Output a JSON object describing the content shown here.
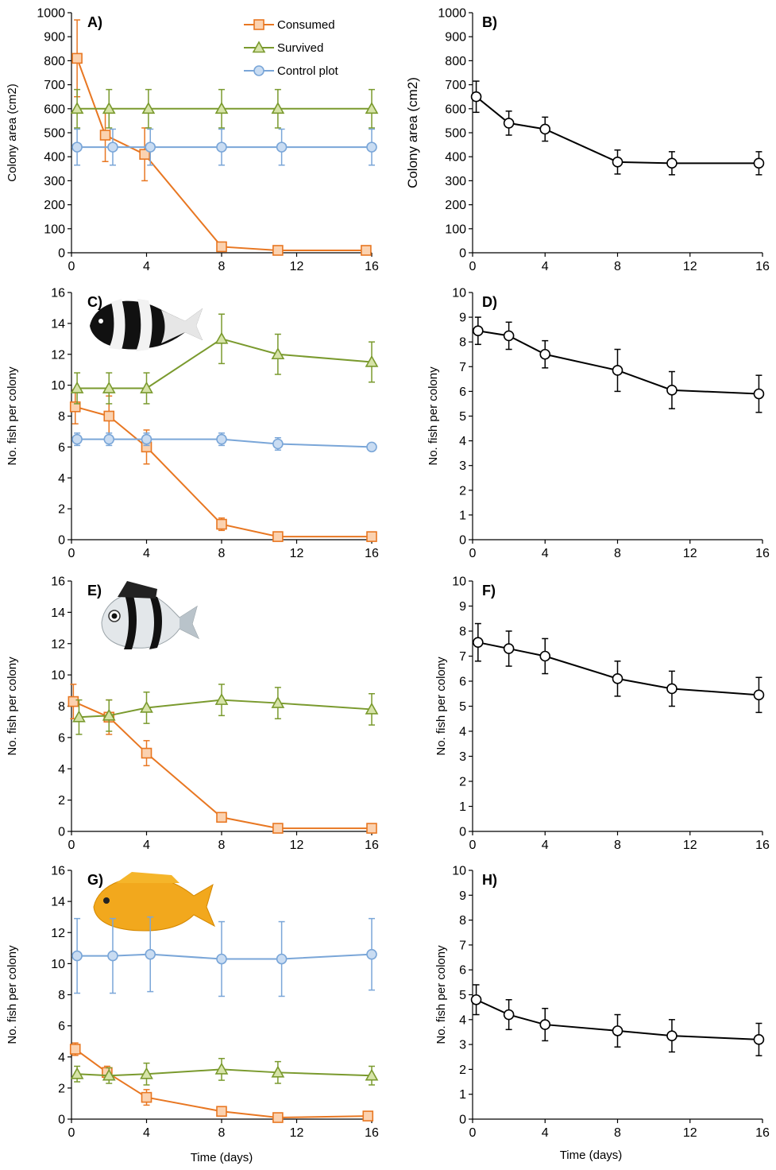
{
  "colors": {
    "consumed": "#e87722",
    "consumed_fill": "#fbd2b0",
    "survived": "#7a9a2e",
    "survived_fill": "#d6e3a8",
    "control": "#7aa6d8",
    "control_fill": "#c9dcf2",
    "mean": "#000000",
    "mean_fill": "#ffffff"
  },
  "legend": {
    "consumed": "Consumed",
    "survived": "Survived",
    "control": "Control plot"
  },
  "xlabel_left": "Time (days)",
  "xlabel_right": "Time (days)",
  "chart_data": [
    {
      "panel": "A)",
      "type": "line",
      "ylabel": "Colony area (cm2)",
      "ylim": [
        0,
        1000
      ],
      "yticks": [
        0,
        100,
        200,
        300,
        400,
        500,
        600,
        700,
        800,
        900,
        1000
      ],
      "xlim": [
        0,
        16
      ],
      "xticks": [
        0,
        4,
        8,
        12,
        16
      ],
      "legend": true,
      "series": [
        {
          "name": "Consumed",
          "style": "consumed",
          "marker": "square",
          "x": [
            0.3,
            1.8,
            3.9,
            8.0,
            11.0,
            15.7
          ],
          "y": [
            810,
            490,
            410,
            25,
            10,
            10
          ],
          "err": [
            160,
            110,
            110,
            0,
            0,
            0
          ]
        },
        {
          "name": "Survived",
          "style": "survived",
          "marker": "triangle",
          "x": [
            0.3,
            2.0,
            4.1,
            8.0,
            11.0,
            16.0
          ],
          "y": [
            600,
            600,
            600,
            600,
            600,
            600
          ],
          "err": [
            80,
            80,
            80,
            80,
            80,
            80
          ]
        },
        {
          "name": "Control plot",
          "style": "control",
          "marker": "circle",
          "x": [
            0.3,
            2.2,
            4.2,
            8.0,
            11.2,
            16.0
          ],
          "y": [
            440,
            440,
            440,
            440,
            440,
            440
          ],
          "err": [
            75,
            75,
            75,
            75,
            75,
            75
          ]
        }
      ]
    },
    {
      "panel": "B)",
      "type": "line",
      "ylabel": "Colony area (cm2)",
      "ylim": [
        0,
        1000
      ],
      "yticks": [
        0,
        100,
        200,
        300,
        400,
        500,
        600,
        700,
        800,
        900,
        1000
      ],
      "xlim": [
        0,
        16
      ],
      "xticks": [
        0,
        4,
        8,
        12,
        16
      ],
      "series": [
        {
          "style": "mean",
          "marker": "circle",
          "x": [
            0.2,
            2.0,
            4.0,
            8.0,
            11.0,
            15.8
          ],
          "y": [
            650,
            540,
            515,
            378,
            373,
            373
          ],
          "err": [
            65,
            50,
            50,
            50,
            48,
            48
          ]
        }
      ]
    },
    {
      "panel": "C)",
      "type": "line",
      "ylabel": "No. fish per colony",
      "ylim": [
        0,
        16
      ],
      "yticks": [
        0,
        2,
        4,
        6,
        8,
        10,
        12,
        14,
        16
      ],
      "xlim": [
        0,
        16
      ],
      "xticks": [
        0,
        4,
        8,
        12,
        16
      ],
      "fish": "black-white",
      "series": [
        {
          "name": "Consumed",
          "style": "consumed",
          "marker": "square",
          "x": [
            0.2,
            2.0,
            4.0,
            8.0,
            11.0,
            16.0
          ],
          "y": [
            8.6,
            8.0,
            6.0,
            1.0,
            0.2,
            0.2
          ],
          "err": [
            1.1,
            1.3,
            1.1,
            0.4,
            0,
            0
          ]
        },
        {
          "name": "Survived",
          "style": "survived",
          "marker": "triangle",
          "x": [
            0.3,
            2.0,
            4.0,
            8.0,
            11.0,
            16.0
          ],
          "y": [
            9.8,
            9.8,
            9.8,
            13.0,
            12.0,
            11.5
          ],
          "err": [
            1.0,
            1.0,
            1.0,
            1.6,
            1.3,
            1.3
          ]
        },
        {
          "name": "Control plot",
          "style": "control",
          "marker": "circle",
          "x": [
            0.3,
            2.0,
            4.0,
            8.0,
            11.0,
            16.0
          ],
          "y": [
            6.5,
            6.5,
            6.5,
            6.5,
            6.2,
            6.0
          ],
          "err": [
            0.4,
            0.4,
            0.4,
            0.4,
            0.4,
            0.2
          ]
        }
      ]
    },
    {
      "panel": "D)",
      "type": "line",
      "ylabel": "No. fish per colony",
      "ylim": [
        0,
        10
      ],
      "yticks": [
        0,
        1,
        2,
        3,
        4,
        5,
        6,
        7,
        8,
        9,
        10
      ],
      "xlim": [
        0,
        16
      ],
      "xticks": [
        0,
        4,
        8,
        12,
        16
      ],
      "series": [
        {
          "style": "mean",
          "marker": "circle",
          "x": [
            0.3,
            2.0,
            4.0,
            8.0,
            11.0,
            15.8
          ],
          "y": [
            8.45,
            8.25,
            7.5,
            6.85,
            6.05,
            5.9
          ],
          "err": [
            0.55,
            0.55,
            0.55,
            0.85,
            0.75,
            0.75
          ]
        }
      ]
    },
    {
      "panel": "E)",
      "type": "line",
      "ylabel": "No. fish per colony",
      "ylim": [
        0,
        16
      ],
      "yticks": [
        0,
        2,
        4,
        6,
        8,
        10,
        12,
        14,
        16
      ],
      "xlim": [
        0,
        16
      ],
      "xticks": [
        0,
        4,
        8,
        12,
        16
      ],
      "fish": "striped-white",
      "series": [
        {
          "name": "Consumed",
          "style": "consumed",
          "marker": "square",
          "x": [
            0.1,
            2.0,
            4.0,
            8.0,
            11.0,
            16.0
          ],
          "y": [
            8.3,
            7.3,
            5.0,
            0.9,
            0.2,
            0.2
          ],
          "err": [
            1.1,
            1.1,
            0.8,
            0,
            0,
            0
          ]
        },
        {
          "name": "Survived",
          "style": "survived",
          "marker": "triangle",
          "x": [
            0.4,
            2.0,
            4.0,
            8.0,
            11.0,
            16.0
          ],
          "y": [
            7.3,
            7.4,
            7.9,
            8.4,
            8.2,
            7.8
          ],
          "err": [
            1.1,
            1.0,
            1.0,
            1.0,
            1.0,
            1.0
          ]
        }
      ]
    },
    {
      "panel": "F)",
      "type": "line",
      "ylabel": "No. fish per colony",
      "ylim": [
        0,
        10
      ],
      "yticks": [
        0,
        1,
        2,
        3,
        4,
        5,
        6,
        7,
        8,
        9,
        10
      ],
      "xlim": [
        0,
        16
      ],
      "xticks": [
        0,
        4,
        8,
        12,
        16
      ],
      "series": [
        {
          "style": "mean",
          "marker": "circle",
          "x": [
            0.3,
            2.0,
            4.0,
            8.0,
            11.0,
            15.8
          ],
          "y": [
            7.55,
            7.3,
            7.0,
            6.1,
            5.7,
            5.45
          ],
          "err": [
            0.75,
            0.7,
            0.7,
            0.7,
            0.7,
            0.7
          ]
        }
      ]
    },
    {
      "panel": "G)",
      "type": "line",
      "ylabel": "No. fish per colony",
      "ylim": [
        0,
        16
      ],
      "yticks": [
        0,
        2,
        4,
        6,
        8,
        10,
        12,
        14,
        16
      ],
      "xlim": [
        0,
        16
      ],
      "xticks": [
        0,
        4,
        8,
        12,
        16
      ],
      "fish": "yellow",
      "series": [
        {
          "name": "Consumed",
          "style": "consumed",
          "marker": "square",
          "x": [
            0.2,
            1.9,
            4.0,
            8.0,
            11.0,
            15.8
          ],
          "y": [
            4.5,
            3.0,
            1.4,
            0.5,
            0.1,
            0.2
          ],
          "err": [
            0.4,
            0.4,
            0.5,
            0,
            0,
            0
          ]
        },
        {
          "name": "Survived",
          "style": "survived",
          "marker": "triangle",
          "x": [
            0.3,
            2.0,
            4.0,
            8.0,
            11.0,
            16.0
          ],
          "y": [
            2.9,
            2.8,
            2.9,
            3.2,
            3.0,
            2.8
          ],
          "err": [
            0.5,
            0.5,
            0.7,
            0.7,
            0.7,
            0.6
          ]
        },
        {
          "name": "Control plot",
          "style": "control",
          "marker": "circle",
          "x": [
            0.3,
            2.2,
            4.2,
            8.0,
            11.2,
            16.0
          ],
          "y": [
            10.5,
            10.5,
            10.6,
            10.3,
            10.3,
            10.6
          ],
          "err": [
            2.4,
            2.4,
            2.4,
            2.4,
            2.4,
            2.3
          ]
        }
      ]
    },
    {
      "panel": "H)",
      "type": "line",
      "ylabel": "No. fish per colony",
      "ylim": [
        0,
        10
      ],
      "yticks": [
        0,
        1,
        2,
        3,
        4,
        5,
        6,
        7,
        8,
        9,
        10
      ],
      "xlim": [
        0,
        16
      ],
      "xticks": [
        0,
        4,
        8,
        12,
        16
      ],
      "series": [
        {
          "style": "mean",
          "marker": "circle",
          "x": [
            0.2,
            2.0,
            4.0,
            8.0,
            11.0,
            15.8
          ],
          "y": [
            4.8,
            4.2,
            3.8,
            3.55,
            3.35,
            3.2
          ],
          "err": [
            0.6,
            0.6,
            0.65,
            0.65,
            0.65,
            0.65
          ]
        }
      ]
    }
  ]
}
